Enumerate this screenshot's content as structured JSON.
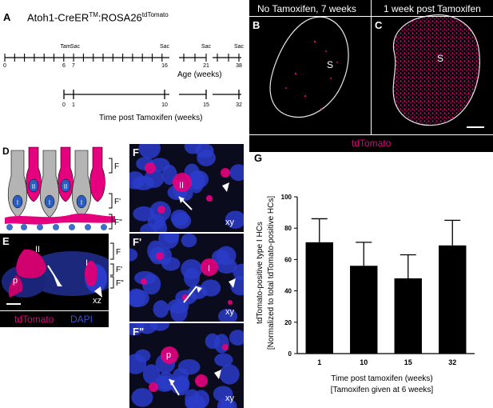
{
  "panel_a": {
    "label": "A",
    "genotype_base": "Atoh1-CreER",
    "genotype_sup1": "TM",
    "genotype_mid": ":ROSA26",
    "genotype_sup2": "tdTomato",
    "tam": "Tam",
    "sac": "Sac",
    "age_ticks": [
      "0",
      "6",
      "7",
      "16",
      "21",
      "38"
    ],
    "age_label": "Age (weeks)",
    "post_ticks": [
      "0",
      "1",
      "10",
      "15",
      "32"
    ],
    "post_label": "Time post Tamoxifen (weeks)"
  },
  "panel_bc": {
    "b_label": "B",
    "c_label": "C",
    "b_title": "No Tamoxifen, 7 weeks",
    "c_title": "1 week post Tamoxifen",
    "s_label": "S",
    "legend": "tdTomato"
  },
  "panel_d": {
    "label": "D",
    "cell_i": "I",
    "cell_ii": "II",
    "levels": [
      "F",
      "F'",
      "F\""
    ]
  },
  "panel_e": {
    "label": "E",
    "ii": "II",
    "i": "I",
    "p": "p",
    "xz": "xz",
    "levels": [
      "F",
      "F'",
      "F\""
    ],
    "legend_td": "tdTomato",
    "legend_dapi": "DAPI"
  },
  "panel_f": {
    "f1_label": "F",
    "f2_label": "F'",
    "f3_label": "F\"",
    "f1_cell": "II",
    "f2_cell": "I",
    "f3_cell": "p",
    "plane": "xy"
  },
  "panel_g": {
    "label": "G",
    "chart_data": {
      "type": "bar",
      "categories": [
        "1",
        "10",
        "15",
        "32"
      ],
      "values": [
        71,
        56,
        48,
        69
      ],
      "errors": [
        15,
        15,
        15,
        16
      ],
      "ylim": [
        0,
        100
      ],
      "yticks": [
        0,
        20,
        40,
        60,
        80,
        100
      ],
      "ylabel": "tdTomato-positive type I HCs",
      "ylabel2": "[Normalized to total tdTomato-positive HCs]",
      "xlabel": "Time post tamoxifen (weeks)",
      "xlabel2": "[Tamoxifen given at 6 weeks]",
      "bar_color": "#000000"
    }
  },
  "colors": {
    "magenta": "#e6007e",
    "dapi_blue": "#2a3cc8",
    "hair_cell_grey": "#b4b4b4"
  }
}
